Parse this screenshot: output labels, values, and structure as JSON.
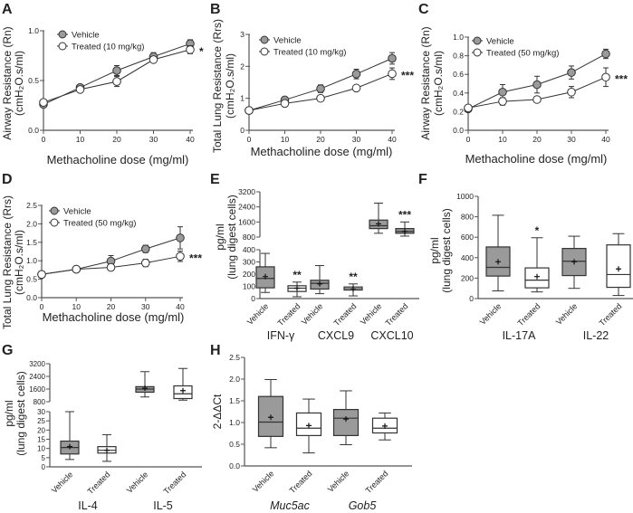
{
  "colors": {
    "vehicle_fill": "#9a9a9a",
    "treated_fill": "#ffffff",
    "line": "#333333",
    "axis": "#555555"
  },
  "chart_data": [
    {
      "panel": "A",
      "type": "line",
      "ylabel": [
        "Airway Resistance (Rn)",
        "(cmH₂O.s/ml)"
      ],
      "xlabel": "Methacholine dose (mg/ml)",
      "x": [
        0,
        10,
        20,
        30,
        40
      ],
      "xticks": [
        "0",
        "10",
        "20",
        "30",
        "40"
      ],
      "ylim": [
        0,
        1.0
      ],
      "yticks": [
        0,
        0.5,
        1.0
      ],
      "ytick_labels": [
        "0.0",
        "0.5",
        "1.0"
      ],
      "series": [
        {
          "name": "Vehicle",
          "marker": "filled",
          "values": [
            0.26,
            0.43,
            0.6,
            0.74,
            0.87
          ],
          "error": [
            0.02,
            0.02,
            0.05,
            0.04,
            0.04
          ]
        },
        {
          "name": "Treated (10 mg/kg)",
          "marker": "open",
          "values": [
            0.28,
            0.41,
            0.49,
            0.71,
            0.81
          ],
          "error": [
            0.02,
            0.02,
            0.05,
            0.03,
            0.04
          ]
        }
      ],
      "significance": "*"
    },
    {
      "panel": "B",
      "type": "line",
      "ylabel": [
        "Total Lung Resistance (Rrs)",
        "(cmH₂O.s/ml)"
      ],
      "xlabel": "Methacholine dose (mg/ml)",
      "x": [
        0,
        10,
        20,
        30,
        40
      ],
      "xticks": [
        "0",
        "10",
        "20",
        "30",
        "40"
      ],
      "ylim": [
        0,
        3
      ],
      "yticks": [
        0,
        1,
        2,
        3
      ],
      "ytick_labels": [
        "0",
        "1",
        "2",
        "3"
      ],
      "series": [
        {
          "name": "Vehicle",
          "marker": "filled",
          "values": [
            0.62,
            0.95,
            1.3,
            1.76,
            2.25
          ],
          "error": [
            0.03,
            0.05,
            0.12,
            0.15,
            0.18
          ]
        },
        {
          "name": "Treated (10 mg/kg)",
          "marker": "open",
          "values": [
            0.62,
            0.84,
            1.0,
            1.32,
            1.77
          ],
          "error": [
            0.03,
            0.04,
            0.08,
            0.05,
            0.18
          ]
        }
      ],
      "significance": "***"
    },
    {
      "panel": "C",
      "type": "line",
      "ylabel": [
        "Airway Resistance (Rn)",
        "(cmH₂O.s/ml)"
      ],
      "xlabel": "Methacholine dose (mg/ml)",
      "x": [
        0,
        10,
        20,
        30,
        40
      ],
      "xticks": [
        "0",
        "10",
        "20",
        "30",
        "40"
      ],
      "ylim": [
        0,
        1.0
      ],
      "yticks": [
        0,
        0.2,
        0.4,
        0.6,
        0.8,
        1.0
      ],
      "ytick_labels": [
        "0.0",
        "0.2",
        "0.4",
        "0.6",
        "0.8",
        "1.0"
      ],
      "series": [
        {
          "name": "Vehicle",
          "marker": "filled",
          "values": [
            0.23,
            0.41,
            0.49,
            0.62,
            0.82
          ],
          "error": [
            0.02,
            0.08,
            0.09,
            0.07,
            0.05
          ]
        },
        {
          "name": "Treated (50 mg/kg)",
          "marker": "open",
          "values": [
            0.24,
            0.31,
            0.33,
            0.41,
            0.57
          ],
          "error": [
            0.02,
            0.04,
            0.02,
            0.06,
            0.1
          ]
        }
      ],
      "significance": "***"
    },
    {
      "panel": "D",
      "type": "line",
      "ylabel": [
        "Total Lung Resistance (Rrs)",
        "(cmH₂O.s/ml)"
      ],
      "xlabel": "Methacholine dose (mg/ml)",
      "x": [
        0,
        10,
        20,
        30,
        40
      ],
      "xticks": [
        "0",
        "10",
        "20",
        "30",
        "40"
      ],
      "ylim": [
        0,
        2.5
      ],
      "yticks": [
        0,
        0.5,
        1.0,
        1.5,
        2.0,
        2.5
      ],
      "ytick_labels": [
        "0.0",
        "0.5",
        "1.0",
        "1.5",
        "2.0",
        "2.5"
      ],
      "series": [
        {
          "name": "Vehicle",
          "marker": "filled",
          "values": [
            0.63,
            0.77,
            0.99,
            1.32,
            1.62
          ],
          "error": [
            0.03,
            0.05,
            0.15,
            0.1,
            0.3
          ]
        },
        {
          "name": "Treated (50 mg/kg)",
          "marker": "open",
          "values": [
            0.63,
            0.77,
            0.82,
            0.94,
            1.12
          ],
          "error": [
            0.03,
            0.04,
            0.04,
            0.1,
            0.14
          ]
        }
      ],
      "significance": "***"
    },
    {
      "panel": "E",
      "type": "box",
      "ylabel": [
        "pg/ml",
        "(lung digest cells)"
      ],
      "broken_axis": [
        [
          0,
          400
        ],
        [
          800,
          3200
        ]
      ],
      "yticks": [
        0,
        100,
        200,
        300,
        400,
        800,
        1600,
        2400,
        3200
      ],
      "ytick_labels": [
        "0",
        "100",
        "200",
        "300",
        "400",
        "800",
        "1600",
        "2400",
        "3200"
      ],
      "groups": [
        "IFN-γ",
        "CXCL9",
        "CXCL10"
      ],
      "group_italic": false,
      "boxes": [
        {
          "group": 0,
          "label": "Vehicle",
          "fill": "vehicle",
          "min": 50,
          "q1": 88,
          "median": 165,
          "q3": 260,
          "max": 370,
          "mean": 180,
          "sig": ""
        },
        {
          "group": 0,
          "label": "Treated",
          "fill": "treated",
          "min": 15,
          "q1": 58,
          "median": 85,
          "q3": 105,
          "max": 135,
          "mean": 85,
          "sig": "**"
        },
        {
          "group": 1,
          "label": "Vehicle",
          "fill": "vehicle",
          "min": 40,
          "q1": 78,
          "median": 125,
          "q3": 150,
          "max": 270,
          "mean": 120,
          "sig": ""
        },
        {
          "group": 1,
          "label": "Treated",
          "fill": "treated",
          "min": 22,
          "q1": 70,
          "median": 82,
          "q3": 95,
          "max": 120,
          "mean": 80,
          "sig": "**"
        },
        {
          "group": 2,
          "label": "Vehicle",
          "fill": "vehicle",
          "min": 1000,
          "q1": 1250,
          "median": 1400,
          "q3": 1700,
          "max": 2600,
          "mean": 1500,
          "sig": ""
        },
        {
          "group": 2,
          "label": "Treated",
          "fill": "vehicle",
          "min": 850,
          "q1": 1000,
          "median": 1100,
          "q3": 1250,
          "max": 1600,
          "mean": 1100,
          "sig": "***"
        }
      ]
    },
    {
      "panel": "F",
      "type": "box",
      "ylabel": [
        "pg/ml",
        "(lung digest cells)"
      ],
      "ylim": [
        0,
        1000
      ],
      "yticks": [
        0,
        200,
        400,
        600,
        800,
        1000
      ],
      "ytick_labels": [
        "0",
        "200",
        "400",
        "600",
        "800",
        "1000"
      ],
      "groups": [
        "IL-17A",
        "IL-22"
      ],
      "group_italic": false,
      "boxes": [
        {
          "group": 0,
          "label": "Vehicle",
          "fill": "vehicle",
          "min": 75,
          "q1": 220,
          "median": 305,
          "q3": 505,
          "max": 815,
          "mean": 360,
          "sig": ""
        },
        {
          "group": 0,
          "label": "Treated",
          "fill": "treated",
          "min": 65,
          "q1": 105,
          "median": 180,
          "q3": 300,
          "max": 595,
          "mean": 215,
          "sig": "*"
        },
        {
          "group": 1,
          "label": "Vehicle",
          "fill": "vehicle",
          "min": 100,
          "q1": 225,
          "median": 365,
          "q3": 490,
          "max": 610,
          "mean": 360,
          "sig": ""
        },
        {
          "group": 1,
          "label": "Treated",
          "fill": "treated",
          "min": 30,
          "q1": 110,
          "median": 235,
          "q3": 525,
          "max": 635,
          "mean": 290,
          "sig": ""
        }
      ]
    },
    {
      "panel": "G",
      "type": "box",
      "ylabel": [
        "pg/ml",
        "(lung digest cells)"
      ],
      "broken_axis": [
        [
          0,
          30
        ],
        [
          800,
          3200
        ]
      ],
      "yticks": [
        0,
        5,
        10,
        15,
        20,
        25,
        30,
        800,
        1600,
        2400,
        3200
      ],
      "ytick_labels": [
        "0",
        "5",
        "10",
        "15",
        "20",
        "25",
        "30",
        "800",
        "1600",
        "2400",
        "3200"
      ],
      "groups": [
        "IL-4",
        "IL-5"
      ],
      "group_italic": false,
      "boxes": [
        {
          "group": 0,
          "label": "Vehicle",
          "fill": "vehicle",
          "min": 4,
          "q1": 7,
          "median": 10.5,
          "q3": 14,
          "max": 30,
          "mean": 11,
          "sig": ""
        },
        {
          "group": 0,
          "label": "Treated",
          "fill": "treated",
          "min": 3,
          "q1": 7.5,
          "median": 9,
          "q3": 11,
          "max": 17.5,
          "mean": 9,
          "sig": ""
        },
        {
          "group": 1,
          "label": "Vehicle",
          "fill": "vehicle",
          "min": 1100,
          "q1": 1400,
          "median": 1600,
          "q3": 1750,
          "max": 2700,
          "mean": 1650,
          "sig": ""
        },
        {
          "group": 1,
          "label": "Treated",
          "fill": "treated",
          "min": 900,
          "q1": 1000,
          "median": 1300,
          "q3": 1800,
          "max": 2900,
          "mean": 1500,
          "sig": ""
        }
      ]
    },
    {
      "panel": "H",
      "type": "box",
      "ylabel": [
        "2⁻ᵀᵀᶜᵗ"
      ],
      "ylabel_text": "2-ΔΔCt",
      "ylim": [
        0,
        2.5
      ],
      "yticks": [
        0,
        0.5,
        1.0,
        1.5,
        2.0,
        2.5
      ],
      "ytick_labels": [
        "0.0",
        "0.5",
        "1.0",
        "1.5",
        "2.0",
        "2.5"
      ],
      "groups": [
        "Muc5ac",
        "Gob5"
      ],
      "group_italic": true,
      "boxes": [
        {
          "group": 0,
          "label": "Vehicle",
          "fill": "vehicle",
          "min": 0.42,
          "q1": 0.68,
          "median": 1.01,
          "q3": 1.6,
          "max": 1.99,
          "mean": 1.12,
          "sig": ""
        },
        {
          "group": 0,
          "label": "Treated",
          "fill": "treated",
          "min": 0.3,
          "q1": 0.7,
          "median": 0.87,
          "q3": 1.22,
          "max": 1.54,
          "mean": 0.93,
          "sig": ""
        },
        {
          "group": 1,
          "label": "Vehicle",
          "fill": "vehicle",
          "min": 0.49,
          "q1": 0.7,
          "median": 1.1,
          "q3": 1.3,
          "max": 1.73,
          "mean": 1.08,
          "sig": ""
        },
        {
          "group": 1,
          "label": "Treated",
          "fill": "treated",
          "min": 0.6,
          "q1": 0.76,
          "median": 0.87,
          "q3": 1.1,
          "max": 1.22,
          "mean": 0.92,
          "sig": ""
        }
      ]
    }
  ]
}
